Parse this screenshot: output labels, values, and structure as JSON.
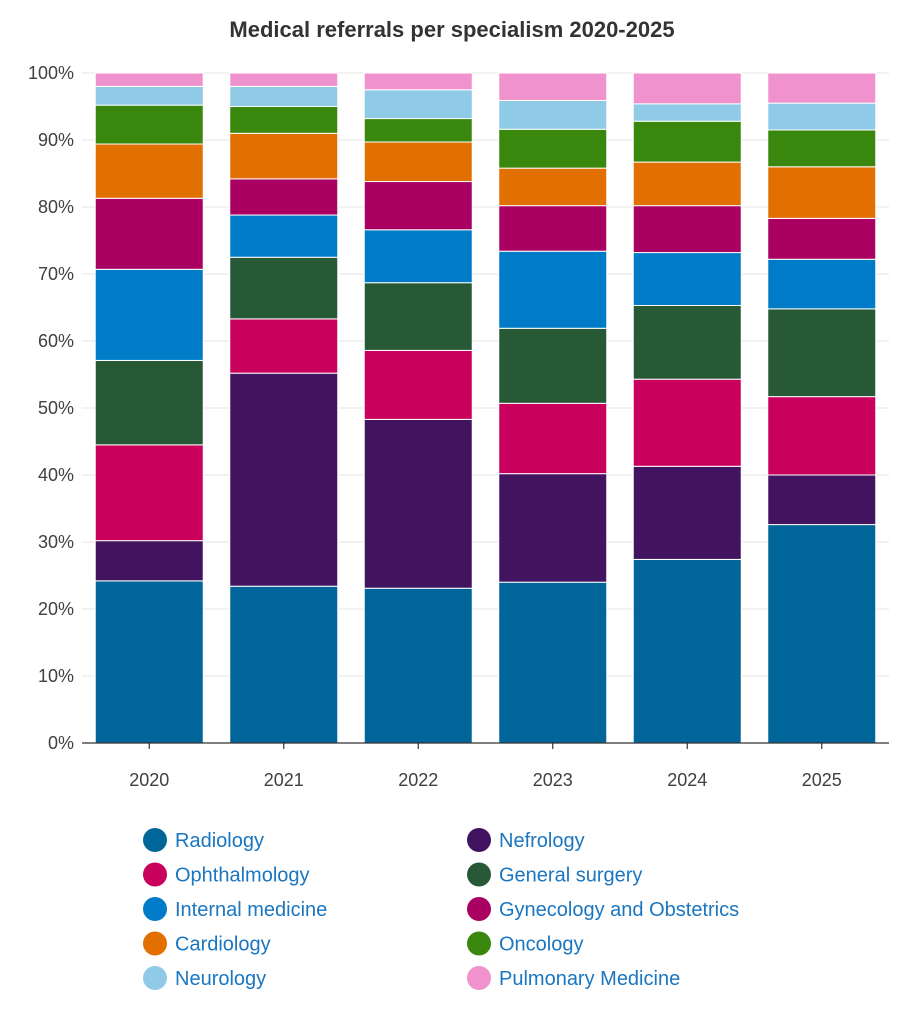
{
  "chart_data": {
    "type": "bar",
    "stacked": true,
    "normalized": true,
    "title": "Medical referrals per specialism 2020-2025",
    "xlabel": "",
    "ylabel": "",
    "ylim": [
      0,
      100
    ],
    "y_ticks": [
      "0%",
      "10%",
      "20%",
      "30%",
      "40%",
      "50%",
      "60%",
      "70%",
      "80%",
      "90%",
      "100%"
    ],
    "categories": [
      "2020",
      "2021",
      "2022",
      "2023",
      "2024",
      "2025"
    ],
    "legend_position": "bottom",
    "series": [
      {
        "name": "Radiology",
        "color": "#006699",
        "values": [
          24.2,
          23.4,
          23.1,
          24.0,
          27.4,
          32.6
        ]
      },
      {
        "name": "Nefrology",
        "color": "#42145f",
        "values": [
          6.0,
          31.8,
          25.2,
          16.2,
          13.9,
          7.4
        ]
      },
      {
        "name": "Ophthalmology",
        "color": "#ca005d",
        "values": [
          14.3,
          8.1,
          10.3,
          10.5,
          13.0,
          11.7
        ]
      },
      {
        "name": "General surgery",
        "color": "#275937",
        "values": [
          12.6,
          9.2,
          10.1,
          11.2,
          11.0,
          13.1
        ]
      },
      {
        "name": "Internal medicine",
        "color": "#007bc7",
        "values": [
          13.6,
          6.3,
          7.9,
          11.5,
          7.9,
          7.4
        ]
      },
      {
        "name": "Gynecology and Obstetrics",
        "color": "#a90061",
        "values": [
          10.6,
          5.4,
          7.2,
          6.8,
          7.0,
          6.1
        ]
      },
      {
        "name": "Cardiology",
        "color": "#e17000",
        "values": [
          8.1,
          6.8,
          5.9,
          5.6,
          6.5,
          7.7
        ]
      },
      {
        "name": "Oncology",
        "color": "#39870c",
        "values": [
          5.8,
          4.0,
          3.5,
          5.8,
          6.1,
          5.5
        ]
      },
      {
        "name": "Neurology",
        "color": "#8fcae7",
        "values": [
          2.8,
          3.0,
          4.3,
          4.3,
          2.6,
          4.0
        ]
      },
      {
        "name": "Pulmonary Medicine",
        "color": "#f092cd",
        "values": [
          2.0,
          2.0,
          2.5,
          4.1,
          4.6,
          4.5
        ]
      }
    ]
  }
}
